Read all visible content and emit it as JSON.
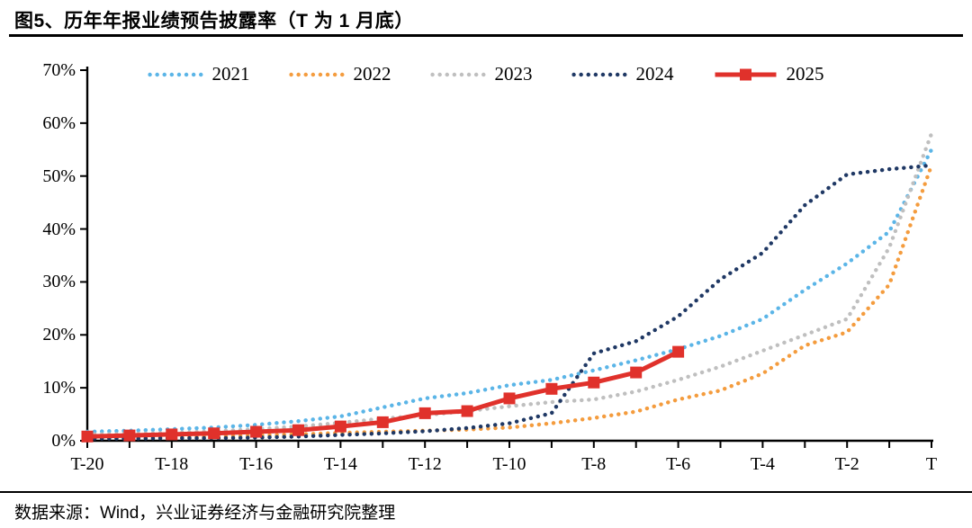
{
  "title": "图5、历年年报业绩预告披露率（T 为 1 月底）",
  "footer": "数据来源：Wind，兴业证券经济与金融研究院整理",
  "chart_data": {
    "type": "line",
    "title": "历年年报业绩预告披露率（T 为 1 月底）",
    "xlabel": "",
    "ylabel": "",
    "ylim": [
      0,
      70
    ],
    "grid": false,
    "legend_position": "top",
    "x": [
      "T-20",
      "T-19",
      "T-18",
      "T-17",
      "T-16",
      "T-15",
      "T-14",
      "T-13",
      "T-12",
      "T-11",
      "T-10",
      "T-9",
      "T-8",
      "T-7",
      "T-6",
      "T-5",
      "T-4",
      "T-3",
      "T-2",
      "T-1",
      "T"
    ],
    "x_tick_labels": [
      "T-20",
      "T-18",
      "T-16",
      "T-14",
      "T-12",
      "T-10",
      "T-8",
      "T-6",
      "T-4",
      "T-2",
      "T"
    ],
    "y_ticks": [
      0,
      10,
      20,
      30,
      40,
      50,
      60,
      70
    ],
    "y_tick_labels": [
      "0%",
      "10%",
      "20%",
      "30%",
      "40%",
      "50%",
      "60%",
      "70%"
    ],
    "series": [
      {
        "name": "2021",
        "color": "#5BB5E7",
        "style": "dotted",
        "values": [
          1.7,
          1.9,
          2.2,
          2.5,
          3.0,
          3.7,
          4.6,
          6.3,
          8.0,
          9.0,
          10.5,
          11.5,
          13.3,
          15.2,
          17.3,
          19.8,
          23.0,
          28.5,
          33.5,
          39.5,
          55.0
        ]
      },
      {
        "name": "2022",
        "color": "#F49C3E",
        "style": "dotted",
        "values": [
          0.5,
          0.6,
          0.7,
          0.8,
          1.0,
          1.2,
          1.5,
          1.7,
          1.9,
          2.1,
          2.5,
          3.3,
          4.3,
          5.5,
          7.8,
          9.5,
          12.7,
          18.0,
          20.5,
          29.5,
          52.0
        ]
      },
      {
        "name": "2023",
        "color": "#BFBFBF",
        "style": "dotted",
        "values": [
          1.2,
          1.3,
          1.5,
          1.8,
          2.2,
          2.7,
          3.4,
          4.2,
          4.8,
          5.6,
          6.5,
          7.3,
          7.8,
          9.3,
          11.5,
          14.0,
          17.0,
          20.0,
          23.0,
          36.5,
          58.0
        ]
      },
      {
        "name": "2024",
        "color": "#1F3864",
        "style": "dotted",
        "values": [
          0.4,
          0.4,
          0.5,
          0.5,
          0.6,
          0.8,
          1.1,
          1.4,
          1.8,
          2.4,
          3.3,
          5.2,
          16.5,
          18.8,
          23.5,
          30.5,
          35.5,
          44.5,
          50.3,
          51.3,
          52.0
        ]
      },
      {
        "name": "2025",
        "color": "#E0312B",
        "style": "solid",
        "marker": "square",
        "values": [
          0.8,
          1.0,
          1.2,
          1.4,
          1.7,
          2.0,
          2.7,
          3.5,
          5.2,
          5.6,
          8.0,
          9.8,
          11.0,
          12.9,
          16.8,
          null,
          null,
          null,
          null,
          null,
          null
        ]
      }
    ]
  }
}
